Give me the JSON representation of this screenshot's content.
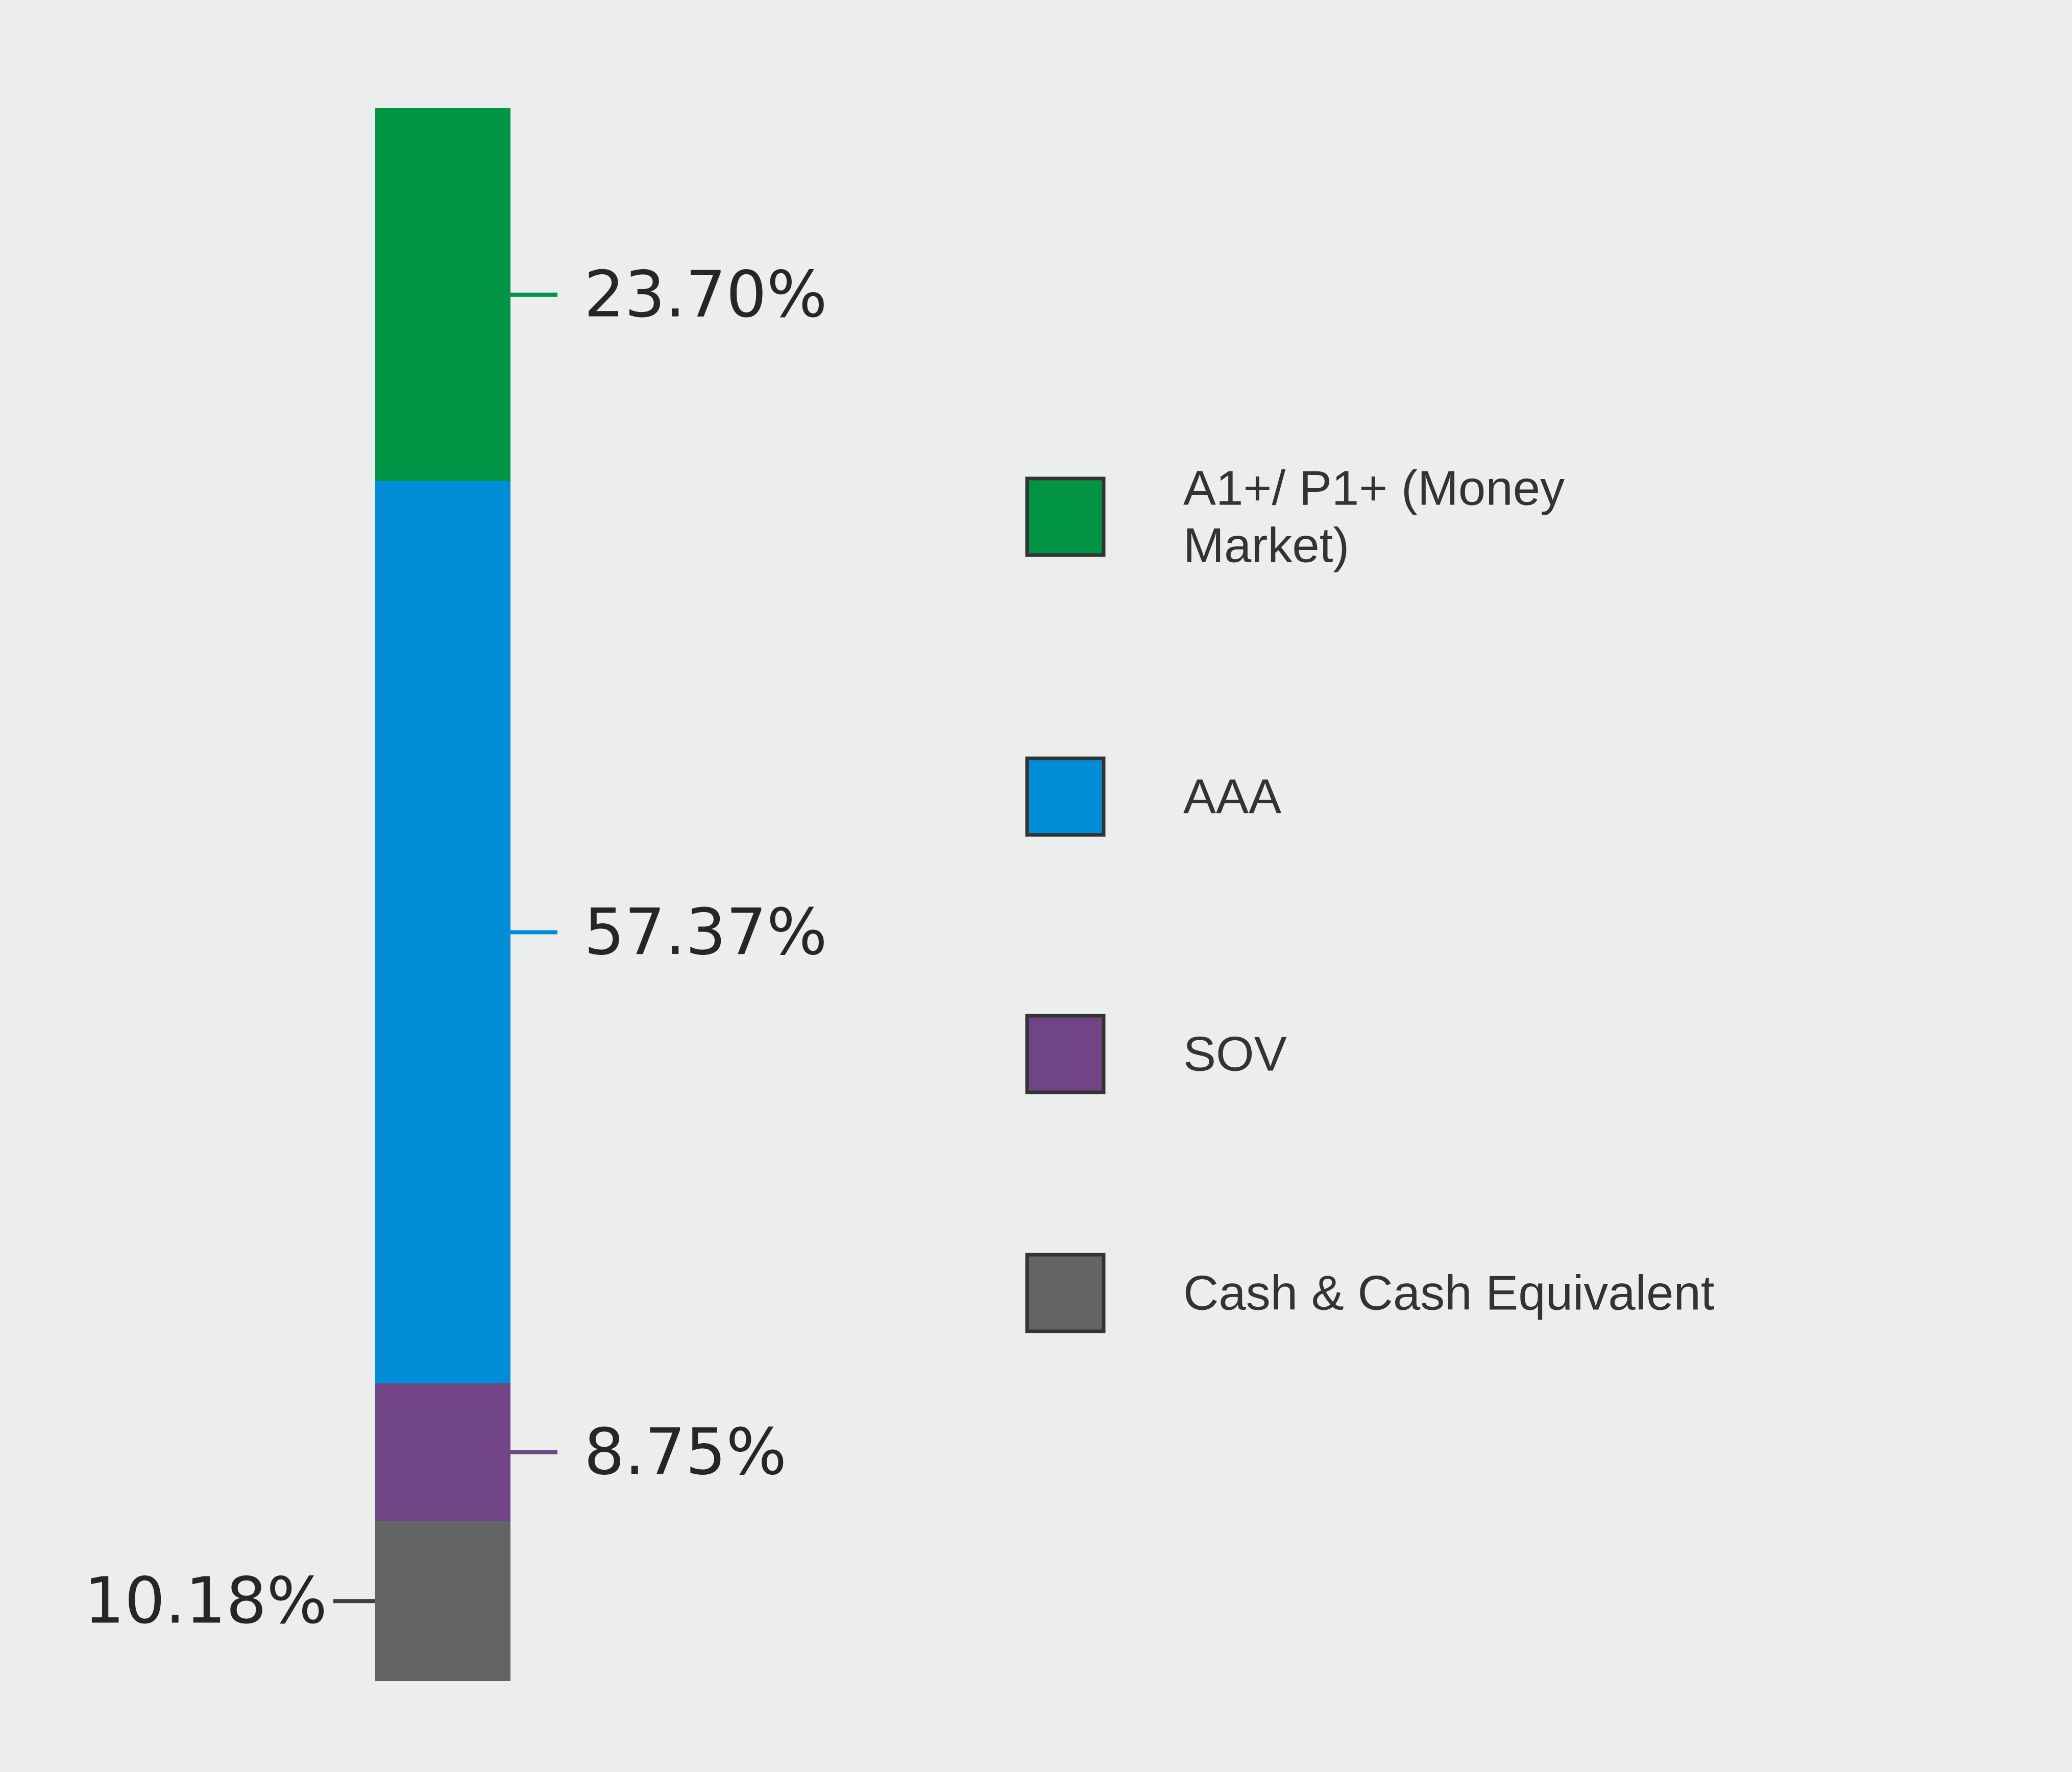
{
  "chart_data": {
    "type": "bar",
    "orientation": "vertical-stacked",
    "title": "",
    "xlabel": "",
    "ylabel": "",
    "unit": "%",
    "ylim": [
      0,
      100
    ],
    "grid": false,
    "legend_placement": "right",
    "series": [
      {
        "name": "A1+/ P1+ (Money Market)",
        "legend_lines": [
          "A1+/ P1+ (Money",
          "Market)"
        ],
        "value": 23.7,
        "label": "23.70%",
        "label_side": "right",
        "color": "#009444"
      },
      {
        "name": "AAA",
        "legend_lines": [
          "AAA"
        ],
        "value": 57.37,
        "label": "57.37%",
        "label_side": "right",
        "color": "#008dd6"
      },
      {
        "name": "SOV",
        "legend_lines": [
          "SOV"
        ],
        "value": 8.75,
        "label": "8.75%",
        "label_side": "right",
        "color": "#714585"
      },
      {
        "name": "Cash & Cash Equivalent",
        "legend_lines": [
          "Cash & Cash Equivalent"
        ],
        "value": 10.18,
        "label": "10.18%",
        "label_side": "left",
        "color": "#646464"
      }
    ]
  }
}
